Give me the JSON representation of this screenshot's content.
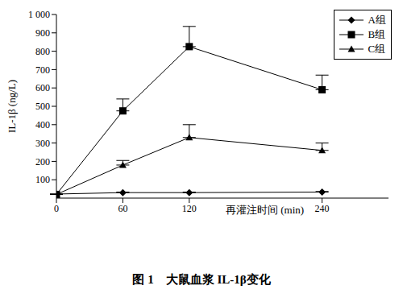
{
  "chart_data": {
    "type": "line",
    "title": "图 1　大鼠血浆 IL-1β变化",
    "y_label": "IL-1β (ng/L)",
    "annotation": "再灌注时间 (min)",
    "x": [
      0,
      60,
      120,
      240
    ],
    "xlim": [
      0,
      300
    ],
    "xticks": [
      0,
      60,
      120,
      240
    ],
    "ylim": [
      0,
      1000
    ],
    "yticks": [
      100,
      200,
      300,
      400,
      500,
      600,
      700,
      800,
      900,
      {
        "value": 1000,
        "label": "1 000"
      }
    ],
    "grid": false,
    "legend": "upper right",
    "series": [
      {
        "name": "A组",
        "color": "#000000",
        "marker": "diamond",
        "values": [
          22,
          30,
          30,
          33
        ],
        "errors": [
          0,
          3,
          3,
          3
        ]
      },
      {
        "name": "B组",
        "color": "#000000",
        "marker": "square",
        "values": [
          20,
          475,
          825,
          590
        ],
        "errors": [
          0,
          65,
          110,
          80
        ]
      },
      {
        "name": "C组",
        "color": "#000000",
        "marker": "triangle",
        "values": [
          20,
          180,
          330,
          260
        ],
        "errors": [
          0,
          25,
          70,
          40
        ]
      }
    ]
  }
}
